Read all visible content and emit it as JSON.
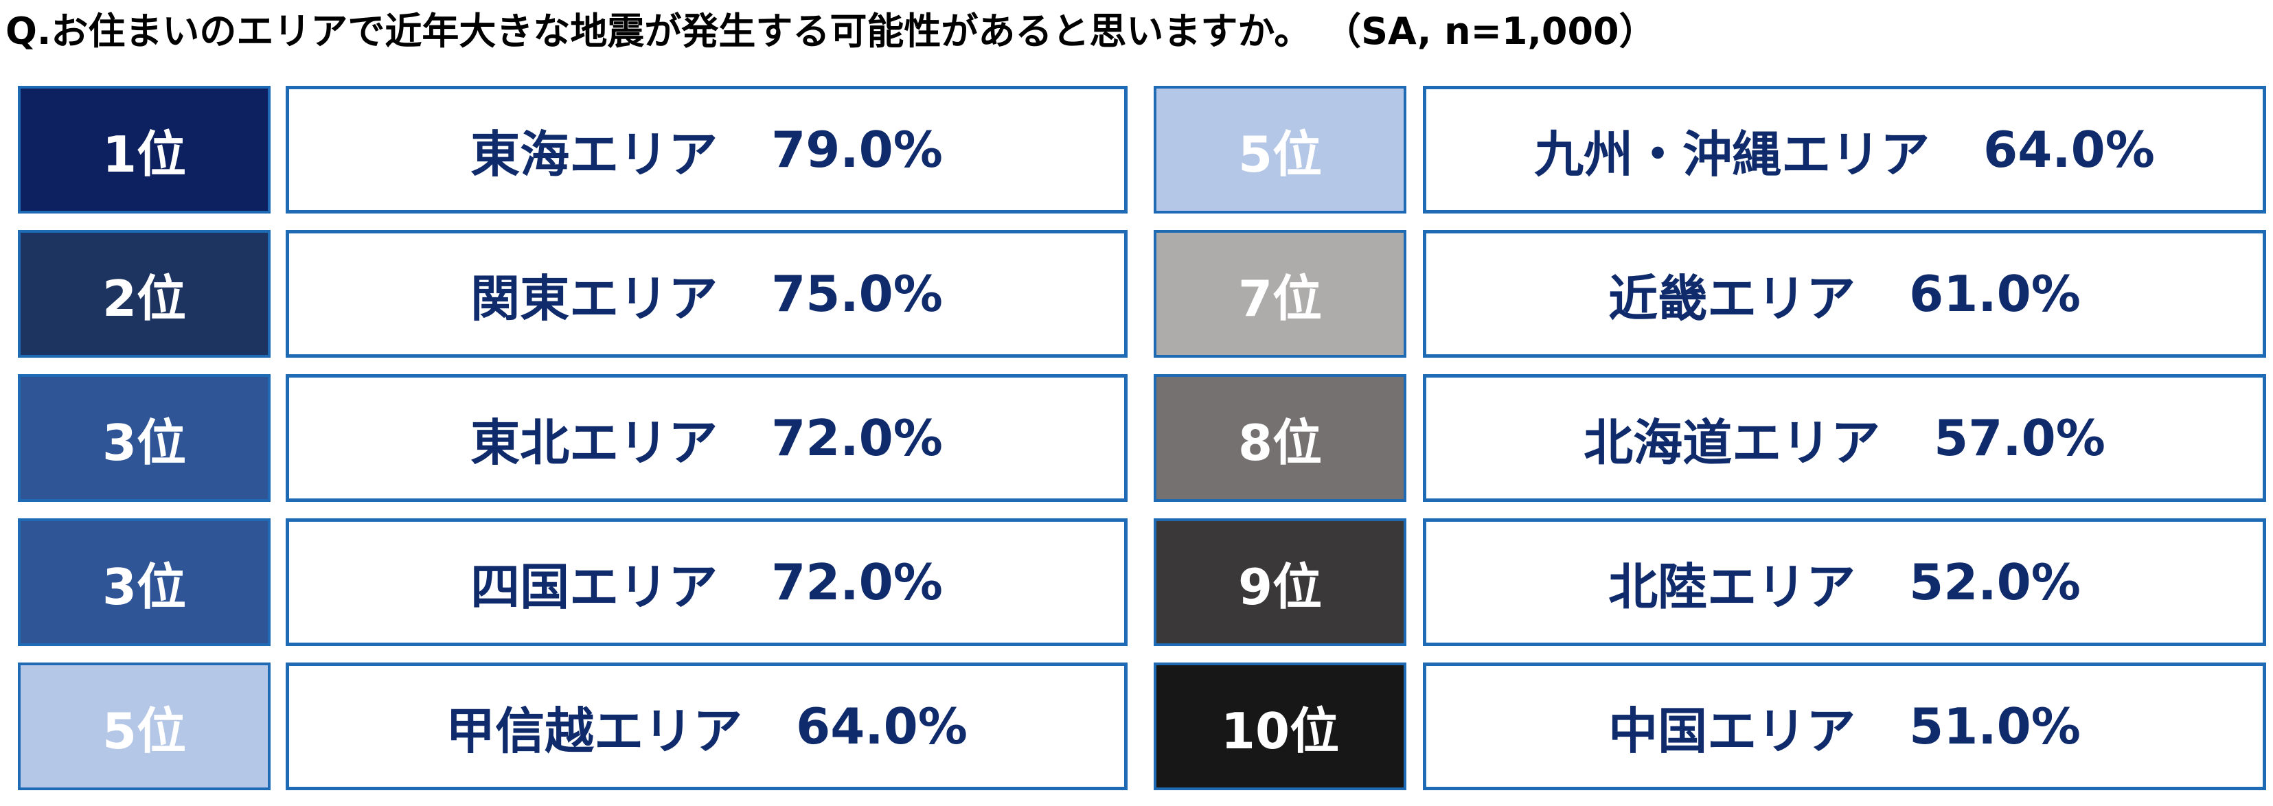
{
  "title": "Q.お住まいのエリアで近年大きな地震が発生する可能性があると思いますか。 （SA, n=1,000）",
  "chart_data": {
    "type": "table",
    "title": "Q.お住まいのエリアで近年大きな地震が発生する可能性があると思いますか。 （SA, n=1,000）",
    "rows": [
      {
        "rank": "1位",
        "area": "東海エリア",
        "value": 79.0,
        "pct": "79.0%",
        "color": "#0d205f"
      },
      {
        "rank": "2位",
        "area": "関東エリア",
        "value": 75.0,
        "pct": "75.0%",
        "color": "#1e3460"
      },
      {
        "rank": "3位",
        "area": "東北エリア",
        "value": 72.0,
        "pct": "72.0%",
        "color": "#2f5597"
      },
      {
        "rank": "3位",
        "area": "四国エリア",
        "value": 72.0,
        "pct": "72.0%",
        "color": "#2f5597"
      },
      {
        "rank": "5位",
        "area": "甲信越エリア",
        "value": 64.0,
        "pct": "64.0%",
        "color": "#b4c7e7"
      },
      {
        "rank": "5位",
        "area": "九州・沖縄エリア",
        "value": 64.0,
        "pct": "64.0%",
        "color": "#b4c7e7"
      },
      {
        "rank": "7位",
        "area": "近畿エリア",
        "value": 61.0,
        "pct": "61.0%",
        "color": "#aeabab"
      },
      {
        "rank": "8位",
        "area": "北海道エリア",
        "value": 57.0,
        "pct": "57.0%",
        "color": "#767171"
      },
      {
        "rank": "9位",
        "area": "北陸エリア",
        "value": 52.0,
        "pct": "52.0%",
        "color": "#3a3838"
      },
      {
        "rank": "10位",
        "area": "中国エリア",
        "value": 51.0,
        "pct": "51.0%",
        "color": "#171717"
      }
    ]
  }
}
